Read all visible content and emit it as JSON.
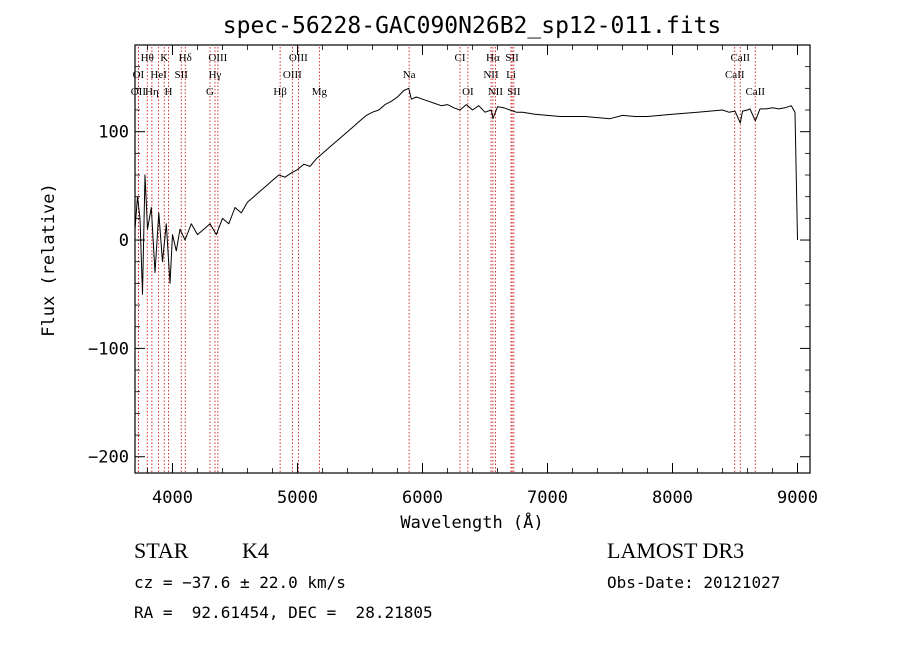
{
  "chart_data": {
    "type": "line",
    "title": "spec-56228-GAC090N26B2_sp12-011.fits",
    "xlabel": "Wavelength (Å)",
    "ylabel": "Flux (relative)",
    "xlim": [
      3700,
      9100
    ],
    "ylim": [
      -215,
      180
    ],
    "xticks": [
      4000,
      5000,
      6000,
      7000,
      8000,
      9000
    ],
    "xtick_labels": [
      "4000",
      "5000",
      "6000",
      "7000",
      "8000",
      "9000"
    ],
    "yticks": [
      -200,
      -100,
      0,
      100
    ],
    "ytick_labels": [
      "−200",
      "−100",
      "0",
      "100"
    ],
    "series": [
      {
        "name": "spectrum",
        "color": "#000000",
        "x": [
          3700,
          3720,
          3740,
          3760,
          3780,
          3800,
          3830,
          3860,
          3890,
          3920,
          3950,
          3980,
          4000,
          4030,
          4060,
          4100,
          4150,
          4200,
          4250,
          4300,
          4350,
          4400,
          4450,
          4500,
          4550,
          4600,
          4650,
          4700,
          4750,
          4800,
          4850,
          4900,
          4950,
          5000,
          5050,
          5100,
          5150,
          5200,
          5250,
          5300,
          5350,
          5400,
          5450,
          5500,
          5550,
          5600,
          5650,
          5700,
          5750,
          5800,
          5850,
          5890,
          5910,
          5950,
          6000,
          6050,
          6100,
          6150,
          6200,
          6250,
          6300,
          6350,
          6400,
          6450,
          6500,
          6550,
          6563,
          6600,
          6650,
          6700,
          6750,
          6800,
          6900,
          7000,
          7100,
          7200,
          7300,
          7400,
          7500,
          7600,
          7700,
          7800,
          7900,
          8000,
          8100,
          8200,
          8300,
          8400,
          8450,
          8500,
          8542,
          8560,
          8600,
          8620,
          8662,
          8700,
          8750,
          8800,
          8850,
          8900,
          8950,
          8980,
          9000
        ],
        "values": [
          10,
          40,
          20,
          -50,
          60,
          10,
          30,
          -30,
          25,
          -20,
          15,
          -40,
          5,
          -10,
          10,
          0,
          15,
          5,
          10,
          15,
          5,
          20,
          15,
          30,
          25,
          35,
          40,
          45,
          50,
          55,
          60,
          58,
          62,
          65,
          70,
          68,
          75,
          80,
          85,
          90,
          95,
          100,
          105,
          110,
          115,
          118,
          120,
          125,
          128,
          132,
          138,
          140,
          130,
          132,
          130,
          128,
          126,
          124,
          125,
          122,
          120,
          125,
          120,
          124,
          118,
          120,
          112,
          123,
          122,
          120,
          118,
          118,
          116,
          115,
          114,
          114,
          114,
          113,
          112,
          115,
          114,
          114,
          115,
          116,
          117,
          118,
          119,
          120,
          118,
          119,
          108,
          119,
          120,
          121,
          110,
          121,
          121,
          122,
          121,
          122,
          124,
          118,
          0
        ]
      }
    ],
    "lines": [
      {
        "label": "Hθ",
        "x": 3798,
        "row": 1
      },
      {
        "label": "K",
        "x": 3934,
        "row": 1
      },
      {
        "label": "Hδ",
        "x": 4102,
        "row": 1
      },
      {
        "label": "OIII",
        "x": 4363,
        "row": 1
      },
      {
        "label": "OIII",
        "x": 5007,
        "row": 1
      },
      {
        "label": "CI",
        "x": 6300,
        "row": 1
      },
      {
        "label": "Hα",
        "x": 6563,
        "row": 1
      },
      {
        "label": "SII",
        "x": 6717,
        "row": 1
      },
      {
        "label": "CaII",
        "x": 8542,
        "row": 1
      },
      {
        "label": "OI",
        "x": 3727,
        "row": 2
      },
      {
        "label": "HeI",
        "x": 3889,
        "row": 2
      },
      {
        "label": "SII",
        "x": 4070,
        "row": 2
      },
      {
        "label": "Hγ",
        "x": 4340,
        "row": 2
      },
      {
        "label": "OIII",
        "x": 4959,
        "row": 2
      },
      {
        "label": "Na",
        "x": 5893,
        "row": 2
      },
      {
        "label": "NII",
        "x": 6548,
        "row": 2
      },
      {
        "label": "Li",
        "x": 6708,
        "row": 2
      },
      {
        "label": "CaII",
        "x": 8498,
        "row": 2
      },
      {
        "label": "OII",
        "x": 3727,
        "row": 3
      },
      {
        "label": "Hη",
        "x": 3835,
        "row": 3
      },
      {
        "label": "H",
        "x": 3968,
        "row": 3
      },
      {
        "label": "G",
        "x": 4300,
        "row": 3
      },
      {
        "label": "Hβ",
        "x": 4861,
        "row": 3
      },
      {
        "label": "Mg",
        "x": 5175,
        "row": 3
      },
      {
        "label": "OI",
        "x": 6363,
        "row": 3
      },
      {
        "label": "NII",
        "x": 6583,
        "row": 3
      },
      {
        "label": "SII",
        "x": 6731,
        "row": 3
      },
      {
        "label": "CaII",
        "x": 8662,
        "row": 3
      }
    ],
    "line_color": "#cc0000",
    "axis_color": "#000000"
  },
  "info": {
    "object_class": "STAR",
    "subclass": "K4",
    "survey": "LAMOST DR3",
    "redshift": "cz = −37.6 ± 22.0 km/s",
    "obs_date": "Obs-Date: 20121027",
    "coords": "RA =  92.61454, DEC =  28.21805"
  }
}
